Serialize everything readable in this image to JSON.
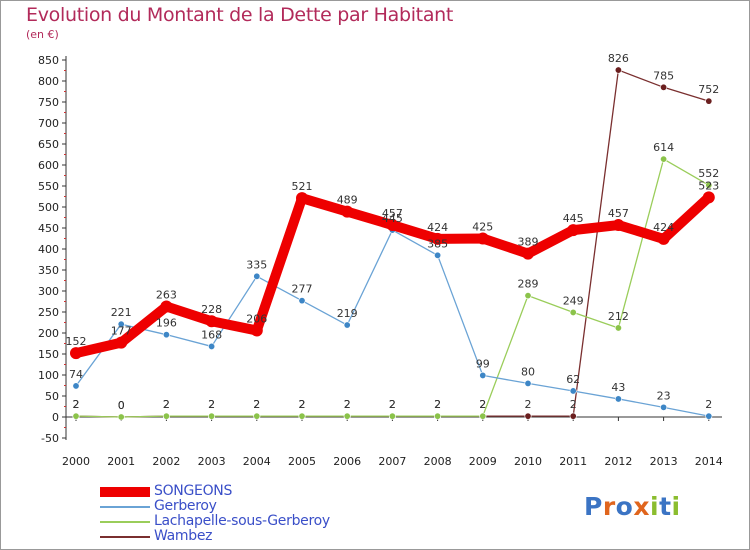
{
  "header": {
    "title": "Evolution du Montant de la Dette par Habitant",
    "unit": "(en €)"
  },
  "logo": {
    "letters": [
      "P",
      "r",
      "o",
      "x",
      "i",
      "t",
      "i"
    ],
    "colors": [
      "#3b74c4",
      "#e0651d",
      "#3b74c4",
      "#e0651d",
      "#8bbd2f",
      "#3b74c4",
      "#8bbd2f"
    ]
  },
  "chart_data": {
    "type": "line",
    "title": "Evolution du Montant de la Dette par Habitant",
    "ylabel": "(en €)",
    "x": [
      "2000",
      "2001",
      "2002",
      "2003",
      "2004",
      "2005",
      "2006",
      "2007",
      "2008",
      "2009",
      "2010",
      "2011",
      "2012",
      "2013",
      "2014"
    ],
    "ylim": [
      -50,
      850
    ],
    "yticks": [
      -50,
      0,
      50,
      100,
      150,
      200,
      250,
      300,
      350,
      400,
      450,
      500,
      550,
      600,
      650,
      700,
      750,
      800,
      850
    ],
    "grid": false,
    "legend_position": "bottom-left",
    "series": [
      {
        "name": "SONGEONS",
        "color": "#ee0000",
        "values": [
          152,
          177,
          263,
          228,
          206,
          521,
          489,
          457,
          424,
          425,
          389,
          445,
          457,
          424,
          523
        ],
        "labels": [
          "152",
          "177",
          "263",
          "228",
          "206",
          "521",
          "489",
          "457",
          "424",
          "425",
          "389",
          "445",
          "457",
          "424",
          "523"
        ]
      },
      {
        "name": "Gerberoy",
        "color": "#6aa3d5",
        "values": [
          74,
          221,
          196,
          168,
          335,
          277,
          219,
          445,
          385,
          99,
          80,
          62,
          43,
          23,
          2
        ],
        "labels": [
          "74",
          "221",
          "196",
          "168",
          "335",
          "277",
          "219",
          "445",
          "385",
          "99",
          "80",
          "62",
          "43",
          "23",
          "2"
        ]
      },
      {
        "name": "Lachapelle-sous-Gerberoy",
        "color": "#9acd5a",
        "values": [
          2,
          0,
          2,
          2,
          2,
          2,
          2,
          2,
          2,
          2,
          289,
          249,
          212,
          614,
          552
        ],
        "labels": [
          "2",
          "0",
          "2",
          "2",
          "2",
          "2",
          "2",
          "2",
          "2",
          "2",
          "289",
          "249",
          "212",
          "614",
          "552"
        ]
      },
      {
        "name": "Wambez",
        "color": "#7a2f2f",
        "values": [
          2,
          0,
          2,
          2,
          2,
          2,
          2,
          2,
          2,
          2,
          2,
          2,
          826,
          785,
          752
        ],
        "labels": [
          "2",
          "0",
          "2",
          "2",
          "2",
          "2",
          "2",
          "2",
          "2",
          "2",
          "2",
          "2",
          "826",
          "785",
          "752"
        ]
      }
    ]
  }
}
